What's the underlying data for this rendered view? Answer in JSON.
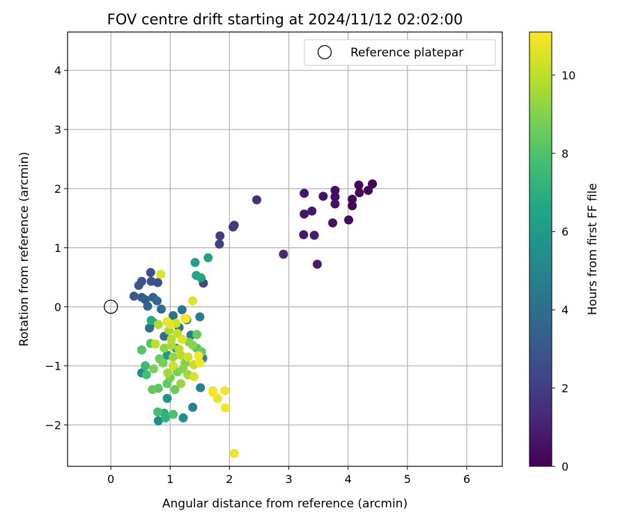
{
  "chart_data": {
    "type": "scatter",
    "title": "FOV centre drift starting at 2024/11/12 02:02:00",
    "xlabel": "Angular distance from reference (arcmin)",
    "ylabel": "Rotation from reference (arcmin)",
    "xlim": [
      -0.73,
      6.6
    ],
    "ylim": [
      -2.7,
      4.65
    ],
    "xticks": [
      0,
      1,
      2,
      3,
      4,
      5,
      6
    ],
    "yticks": [
      -2,
      -1,
      0,
      1,
      2,
      3,
      4
    ],
    "grid": true,
    "legend": {
      "placement": "upper right",
      "entries": [
        {
          "label": "Reference platepar",
          "marker": "open-circle"
        }
      ]
    },
    "reference_point": {
      "x": 0,
      "y": 0,
      "label": "Reference platepar"
    },
    "colorbar": {
      "label": "Hours from first FF file",
      "min": 0,
      "max": 11.1,
      "ticks": [
        0,
        2,
        4,
        6,
        8,
        10
      ],
      "colormap": "viridis"
    },
    "points": [
      {
        "x": 4.41,
        "y": 2.08,
        "t": 0.05
      },
      {
        "x": 4.18,
        "y": 2.06,
        "t": 0.1
      },
      {
        "x": 4.34,
        "y": 1.97,
        "t": 0.15
      },
      {
        "x": 4.19,
        "y": 1.93,
        "t": 0.2
      },
      {
        "x": 4.07,
        "y": 1.82,
        "t": 0.25
      },
      {
        "x": 4.07,
        "y": 1.71,
        "t": 0.3
      },
      {
        "x": 4.01,
        "y": 1.47,
        "t": 0.35
      },
      {
        "x": 3.78,
        "y": 1.97,
        "t": 0.4
      },
      {
        "x": 3.78,
        "y": 1.86,
        "t": 0.45
      },
      {
        "x": 3.78,
        "y": 1.74,
        "t": 0.5
      },
      {
        "x": 3.74,
        "y": 1.42,
        "t": 0.55
      },
      {
        "x": 3.58,
        "y": 1.87,
        "t": 0.6
      },
      {
        "x": 3.26,
        "y": 1.92,
        "t": 0.65
      },
      {
        "x": 3.26,
        "y": 1.57,
        "t": 0.7
      },
      {
        "x": 3.39,
        "y": 1.62,
        "t": 0.75
      },
      {
        "x": 3.25,
        "y": 1.22,
        "t": 0.8
      },
      {
        "x": 3.43,
        "y": 1.21,
        "t": 0.85
      },
      {
        "x": 3.48,
        "y": 0.72,
        "t": 0.9
      },
      {
        "x": 2.91,
        "y": 0.89,
        "t": 1.2
      },
      {
        "x": 2.46,
        "y": 1.81,
        "t": 1.5
      },
      {
        "x": 2.08,
        "y": 1.38,
        "t": 1.7
      },
      {
        "x": 2.06,
        "y": 1.35,
        "t": 1.8
      },
      {
        "x": 1.84,
        "y": 1.2,
        "t": 2.0
      },
      {
        "x": 1.83,
        "y": 1.06,
        "t": 2.1
      },
      {
        "x": 1.56,
        "y": 0.4,
        "t": 2.3
      },
      {
        "x": 0.67,
        "y": 0.58,
        "t": 2.6
      },
      {
        "x": 0.79,
        "y": 0.41,
        "t": 2.7
      },
      {
        "x": 0.68,
        "y": 0.43,
        "t": 2.8
      },
      {
        "x": 0.52,
        "y": 0.43,
        "t": 2.9
      },
      {
        "x": 0.47,
        "y": 0.36,
        "t": 3.0
      },
      {
        "x": 0.39,
        "y": 0.18,
        "t": 3.1
      },
      {
        "x": 0.52,
        "y": 0.16,
        "t": 3.2
      },
      {
        "x": 0.58,
        "y": 0.12,
        "t": 3.3
      },
      {
        "x": 0.62,
        "y": 0.01,
        "t": 3.5
      },
      {
        "x": 0.71,
        "y": 0.16,
        "t": 3.6
      },
      {
        "x": 0.78,
        "y": 0.1,
        "t": 3.7
      },
      {
        "x": 0.85,
        "y": -0.04,
        "t": 3.8
      },
      {
        "x": 0.65,
        "y": -0.36,
        "t": 3.9
      },
      {
        "x": 0.72,
        "y": -0.27,
        "t": 4.0
      },
      {
        "x": 0.9,
        "y": -0.5,
        "t": 4.1
      },
      {
        "x": 1.05,
        "y": -0.15,
        "t": 4.2
      },
      {
        "x": 1.2,
        "y": -0.05,
        "t": 4.3
      },
      {
        "x": 1.28,
        "y": -0.22,
        "t": 4.4
      },
      {
        "x": 1.15,
        "y": -0.35,
        "t": 4.5
      },
      {
        "x": 1.35,
        "y": -0.48,
        "t": 4.6
      },
      {
        "x": 1.5,
        "y": -0.17,
        "t": 4.7
      },
      {
        "x": 1.51,
        "y": -1.37,
        "t": 4.8
      },
      {
        "x": 1.38,
        "y": -1.7,
        "t": 4.9
      },
      {
        "x": 1.55,
        "y": -0.87,
        "t": 5.0
      },
      {
        "x": 0.52,
        "y": -1.12,
        "t": 5.2
      },
      {
        "x": 0.8,
        "y": -1.93,
        "t": 5.4
      },
      {
        "x": 1.22,
        "y": -1.88,
        "t": 5.5
      },
      {
        "x": 0.95,
        "y": -1.55,
        "t": 5.6
      },
      {
        "x": 0.95,
        "y": -0.82,
        "t": 5.8
      },
      {
        "x": 1.1,
        "y": -0.7,
        "t": 6.0
      },
      {
        "x": 1.42,
        "y": 0.75,
        "t": 6.3
      },
      {
        "x": 1.64,
        "y": 0.83,
        "t": 6.4
      },
      {
        "x": 1.44,
        "y": 0.53,
        "t": 6.5
      },
      {
        "x": 1.52,
        "y": 0.49,
        "t": 6.6
      },
      {
        "x": 0.68,
        "y": -0.23,
        "t": 6.8
      },
      {
        "x": 0.9,
        "y": -1.8,
        "t": 7.0
      },
      {
        "x": 0.92,
        "y": -1.88,
        "t": 7.2
      },
      {
        "x": 0.58,
        "y": -1.0,
        "t": 7.5
      },
      {
        "x": 0.6,
        "y": -1.15,
        "t": 7.7
      },
      {
        "x": 0.79,
        "y": -1.78,
        "t": 7.8
      },
      {
        "x": 1.05,
        "y": -1.82,
        "t": 7.9
      },
      {
        "x": 0.52,
        "y": -0.73,
        "t": 8.0
      },
      {
        "x": 0.67,
        "y": -0.62,
        "t": 8.1
      },
      {
        "x": 0.8,
        "y": -1.38,
        "t": 8.2
      },
      {
        "x": 0.95,
        "y": -1.3,
        "t": 8.3
      },
      {
        "x": 1.45,
        "y": -0.47,
        "t": 8.4
      },
      {
        "x": 1.53,
        "y": -0.76,
        "t": 8.5
      },
      {
        "x": 0.82,
        "y": -0.88,
        "t": 8.6
      },
      {
        "x": 1.0,
        "y": -1.2,
        "t": 8.7
      },
      {
        "x": 1.12,
        "y": -1.1,
        "t": 8.8
      },
      {
        "x": 0.72,
        "y": -1.05,
        "t": 8.9
      },
      {
        "x": 1.25,
        "y": -0.95,
        "t": 9.0
      },
      {
        "x": 1.38,
        "y": -0.65,
        "t": 9.1
      },
      {
        "x": 0.9,
        "y": -0.7,
        "t": 9.2
      },
      {
        "x": 1.05,
        "y": -0.85,
        "t": 9.3
      },
      {
        "x": 1.18,
        "y": -1.3,
        "t": 9.4
      },
      {
        "x": 1.3,
        "y": -1.15,
        "t": 9.5
      },
      {
        "x": 0.98,
        "y": -0.4,
        "t": 9.6
      },
      {
        "x": 0.8,
        "y": -0.3,
        "t": 9.7
      },
      {
        "x": 1.02,
        "y": -0.55,
        "t": 9.8
      },
      {
        "x": 1.15,
        "y": -0.72,
        "t": 9.9
      },
      {
        "x": 0.75,
        "y": -0.63,
        "t": 10.0
      },
      {
        "x": 1.4,
        "y": -0.98,
        "t": 10.1
      },
      {
        "x": 1.1,
        "y": -0.28,
        "t": 10.2
      },
      {
        "x": 1.27,
        "y": -0.2,
        "t": 10.3
      },
      {
        "x": 1.4,
        "y": -1.18,
        "t": 10.4
      },
      {
        "x": 0.84,
        "y": 0.55,
        "t": 10.5
      },
      {
        "x": 1.38,
        "y": 0.1,
        "t": 10.6
      },
      {
        "x": 1.72,
        "y": -1.42,
        "t": 10.7
      },
      {
        "x": 1.8,
        "y": -1.55,
        "t": 10.8
      },
      {
        "x": 1.92,
        "y": -1.42,
        "t": 10.9
      },
      {
        "x": 1.93,
        "y": -1.71,
        "t": 11.0
      },
      {
        "x": 2.08,
        "y": -2.48,
        "t": 10.8
      },
      {
        "x": 1.72,
        "y": -1.45,
        "t": 11.0
      },
      {
        "x": 1.5,
        "y": -0.95,
        "t": 10.9
      },
      {
        "x": 1.48,
        "y": -0.83,
        "t": 11.0
      },
      {
        "x": 1.25,
        "y": -0.2,
        "t": 11.0
      },
      {
        "x": 0.95,
        "y": -0.25,
        "t": 10.8
      },
      {
        "x": 1.0,
        "y": -0.3,
        "t": 10.7
      },
      {
        "x": 1.2,
        "y": -0.55,
        "t": 10.5
      },
      {
        "x": 1.05,
        "y": -1.0,
        "t": 10.2
      },
      {
        "x": 1.18,
        "y": -0.82,
        "t": 9.9
      },
      {
        "x": 0.96,
        "y": -1.12,
        "t": 9.5
      },
      {
        "x": 1.22,
        "y": -1.05,
        "t": 9.2
      },
      {
        "x": 1.32,
        "y": -0.6,
        "t": 9.0
      },
      {
        "x": 0.88,
        "y": -0.95,
        "t": 8.8
      },
      {
        "x": 1.08,
        "y": -1.4,
        "t": 8.6
      },
      {
        "x": 0.7,
        "y": -1.4,
        "t": 8.4
      },
      {
        "x": 1.45,
        "y": -0.7,
        "t": 8.2
      },
      {
        "x": 1.02,
        "y": -0.65,
        "t": 9.7
      },
      {
        "x": 1.12,
        "y": -0.45,
        "t": 10.1
      },
      {
        "x": 1.3,
        "y": -0.85,
        "t": 10.3
      }
    ]
  }
}
